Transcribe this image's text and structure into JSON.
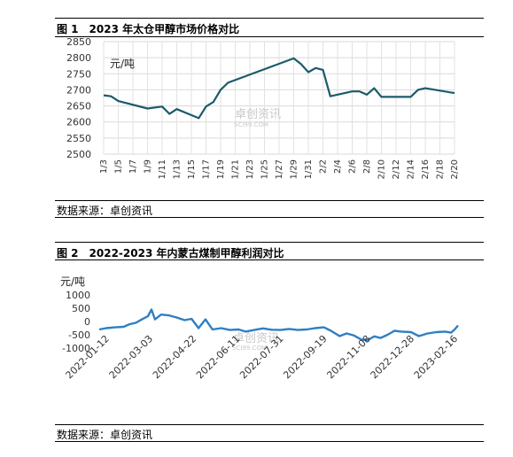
{
  "figure1": {
    "label": "图 1",
    "title": "2023 年太仓甲醇市场价格对比",
    "source": "数据来源：卓创资讯"
  },
  "figure2": {
    "label": "图 2",
    "title": "2022-2023 年内蒙古煤制甲醇利润对比",
    "source": "数据来源：卓创资讯"
  },
  "watermark": {
    "text": "卓创资讯",
    "sub": "SCI99.COM"
  },
  "chart_data": [
    {
      "type": "line",
      "title": "2023 年太仓甲醇市场价格对比",
      "ylabel": "元/吨",
      "ylim": [
        2500,
        2850
      ],
      "yticks": [
        2500,
        2550,
        2600,
        2650,
        2700,
        2750,
        2800,
        2850
      ],
      "categories": [
        "1/3",
        "1/5",
        "1/7",
        "1/9",
        "1/11",
        "1/13",
        "1/15",
        "1/17",
        "1/19",
        "1/21",
        "1/23",
        "1/25",
        "1/27",
        "1/29",
        "1/31",
        "2/2",
        "2/4",
        "2/6",
        "2/8",
        "2/10",
        "2/12",
        "2/14",
        "2/16",
        "2/18",
        "2/20"
      ],
      "grid": true,
      "line_color": "#1c5a6a",
      "points": [
        [
          "1/3",
          2683
        ],
        [
          "1/4",
          2680
        ],
        [
          "1/5",
          2665
        ],
        [
          "1/9",
          2642
        ],
        [
          "1/11",
          2648
        ],
        [
          "1/12",
          2625
        ],
        [
          "1/13",
          2640
        ],
        [
          "1/16",
          2612
        ],
        [
          "1/17",
          2648
        ],
        [
          "1/18",
          2662
        ],
        [
          "1/19",
          2700
        ],
        [
          "1/20",
          2722
        ],
        [
          "1/29",
          2798
        ],
        [
          "1/30",
          2780
        ],
        [
          "1/31",
          2755
        ],
        [
          "2/1",
          2768
        ],
        [
          "2/2",
          2762
        ],
        [
          "2/3",
          2680
        ],
        [
          "2/6",
          2695
        ],
        [
          "2/7",
          2695
        ],
        [
          "2/8",
          2685
        ],
        [
          "2/9",
          2705
        ],
        [
          "2/10",
          2678
        ],
        [
          "2/14",
          2678
        ],
        [
          "2/15",
          2700
        ],
        [
          "2/16",
          2705
        ],
        [
          "2/20",
          2690
        ]
      ]
    },
    {
      "type": "line",
      "title": "2022-2023 年内蒙古煤制甲醇利润对比",
      "ylabel": "元/吨",
      "ylim": [
        -1000,
        1000
      ],
      "yticks": [
        1000,
        500,
        0,
        -500,
        -1000
      ],
      "xticks": [
        "2022-01-12",
        "2022-03-03",
        "2022-04-22",
        "2022-06-11",
        "2022-07-31",
        "2022-09-19",
        "2022-11-08",
        "2022-12-28",
        "2023-02-16"
      ],
      "line_color": "#2e7fc3",
      "points": [
        [
          "2022-01-04",
          -300
        ],
        [
          "2022-01-12",
          -250
        ],
        [
          "2022-01-22",
          -220
        ],
        [
          "2022-02-01",
          -200
        ],
        [
          "2022-02-08",
          -100
        ],
        [
          "2022-02-15",
          -50
        ],
        [
          "2022-02-22",
          80
        ],
        [
          "2022-03-01",
          200
        ],
        [
          "2022-03-05",
          450
        ],
        [
          "2022-03-09",
          80
        ],
        [
          "2022-03-16",
          260
        ],
        [
          "2022-03-25",
          230
        ],
        [
          "2022-04-03",
          150
        ],
        [
          "2022-04-12",
          50
        ],
        [
          "2022-04-20",
          100
        ],
        [
          "2022-04-28",
          -250
        ],
        [
          "2022-05-06",
          80
        ],
        [
          "2022-05-14",
          -300
        ],
        [
          "2022-05-24",
          -250
        ],
        [
          "2022-06-03",
          -320
        ],
        [
          "2022-06-13",
          -300
        ],
        [
          "2022-06-21",
          -380
        ],
        [
          "2022-07-01",
          -320
        ],
        [
          "2022-07-11",
          -260
        ],
        [
          "2022-07-21",
          -310
        ],
        [
          "2022-07-31",
          -320
        ],
        [
          "2022-08-10",
          -280
        ],
        [
          "2022-08-20",
          -320
        ],
        [
          "2022-08-30",
          -300
        ],
        [
          "2022-09-09",
          -250
        ],
        [
          "2022-09-19",
          -220
        ],
        [
          "2022-09-27",
          -350
        ],
        [
          "2022-10-07",
          -550
        ],
        [
          "2022-10-15",
          -450
        ],
        [
          "2022-10-23",
          -520
        ],
        [
          "2022-11-01",
          -680
        ],
        [
          "2022-11-08",
          -700
        ],
        [
          "2022-11-16",
          -560
        ],
        [
          "2022-11-23",
          -620
        ],
        [
          "2022-12-01",
          -500
        ],
        [
          "2022-12-09",
          -350
        ],
        [
          "2022-12-17",
          -380
        ],
        [
          "2022-12-28",
          -400
        ],
        [
          "2023-01-06",
          -550
        ],
        [
          "2023-01-16",
          -450
        ],
        [
          "2023-01-26",
          -400
        ],
        [
          "2023-02-05",
          -380
        ],
        [
          "2023-02-12",
          -420
        ],
        [
          "2023-02-16",
          -300
        ],
        [
          "2023-02-20",
          -150
        ]
      ]
    }
  ]
}
